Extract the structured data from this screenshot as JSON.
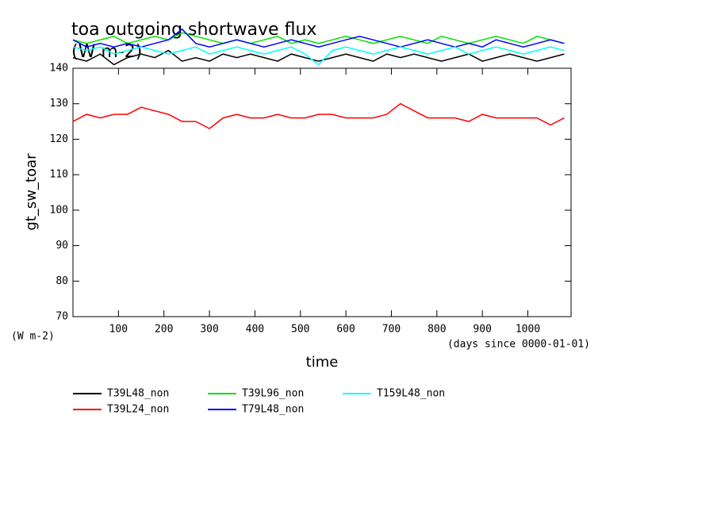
{
  "chart_data": {
    "type": "line",
    "title": "toa outgoing shortwave flux",
    "subtitle": "(W m-2)",
    "y_label": "gt_sw_toar",
    "y_units": "(W m-2)",
    "x_label": "time",
    "x_units": "(days since 0000-01-01)",
    "xlim": [
      0,
      1095
    ],
    "xticks": [
      100,
      200,
      300,
      400,
      500,
      600,
      700,
      800,
      900,
      1000
    ],
    "ylim": [
      70,
      140
    ],
    "yticks": [
      70,
      80,
      90,
      100,
      110,
      120,
      130,
      140
    ],
    "x": [
      0,
      30,
      60,
      90,
      120,
      150,
      180,
      210,
      240,
      270,
      300,
      330,
      360,
      390,
      420,
      450,
      480,
      510,
      540,
      570,
      600,
      630,
      660,
      690,
      720,
      750,
      780,
      810,
      840,
      870,
      900,
      930,
      960,
      990,
      1020,
      1050,
      1080
    ],
    "series": [
      {
        "name": "T39L48_non",
        "color": "#000000",
        "values": [
          143,
          142,
          144,
          141,
          143,
          144,
          143,
          145,
          142,
          143,
          142,
          144,
          143,
          144,
          143,
          142,
          144,
          143,
          142,
          143,
          144,
          143,
          142,
          144,
          143,
          144,
          143,
          142,
          143,
          144,
          142,
          143,
          144,
          143,
          142,
          143,
          144
        ]
      },
      {
        "name": "T39L24_non",
        "color": "#ff0000",
        "values": [
          125,
          127,
          126,
          127,
          127,
          129,
          128,
          127,
          125,
          125,
          123,
          126,
          127,
          126,
          126,
          127,
          126,
          126,
          127,
          127,
          126,
          126,
          126,
          127,
          130,
          128,
          126,
          126,
          126,
          125,
          127,
          126,
          126,
          126,
          126,
          124,
          126
        ]
      },
      {
        "name": "T39L96_non",
        "color": "#00e000",
        "values": [
          148,
          147,
          148,
          149,
          147,
          148,
          149,
          148,
          150,
          149,
          148,
          147,
          148,
          147,
          148,
          149,
          147,
          148,
          147,
          148,
          149,
          148,
          147,
          148,
          149,
          148,
          147,
          149,
          148,
          147,
          148,
          149,
          148,
          147,
          149,
          148,
          147
        ]
      },
      {
        "name": "T79L48_non",
        "color": "#0000ff",
        "values": [
          148,
          146,
          147,
          146,
          147,
          146,
          147,
          148,
          151,
          147,
          146,
          147,
          148,
          147,
          146,
          147,
          148,
          147,
          146,
          147,
          148,
          149,
          148,
          147,
          146,
          147,
          148,
          147,
          146,
          147,
          146,
          148,
          147,
          146,
          147,
          148,
          147
        ]
      },
      {
        "name": "T159L48_non",
        "color": "#00ffff",
        "values": [
          146,
          145,
          146,
          144,
          145,
          146,
          145,
          144,
          145,
          146,
          144,
          145,
          146,
          145,
          144,
          145,
          146,
          144,
          141,
          145,
          146,
          145,
          144,
          145,
          146,
          145,
          144,
          145,
          146,
          144,
          145,
          146,
          145,
          144,
          145,
          146,
          145
        ]
      }
    ]
  }
}
